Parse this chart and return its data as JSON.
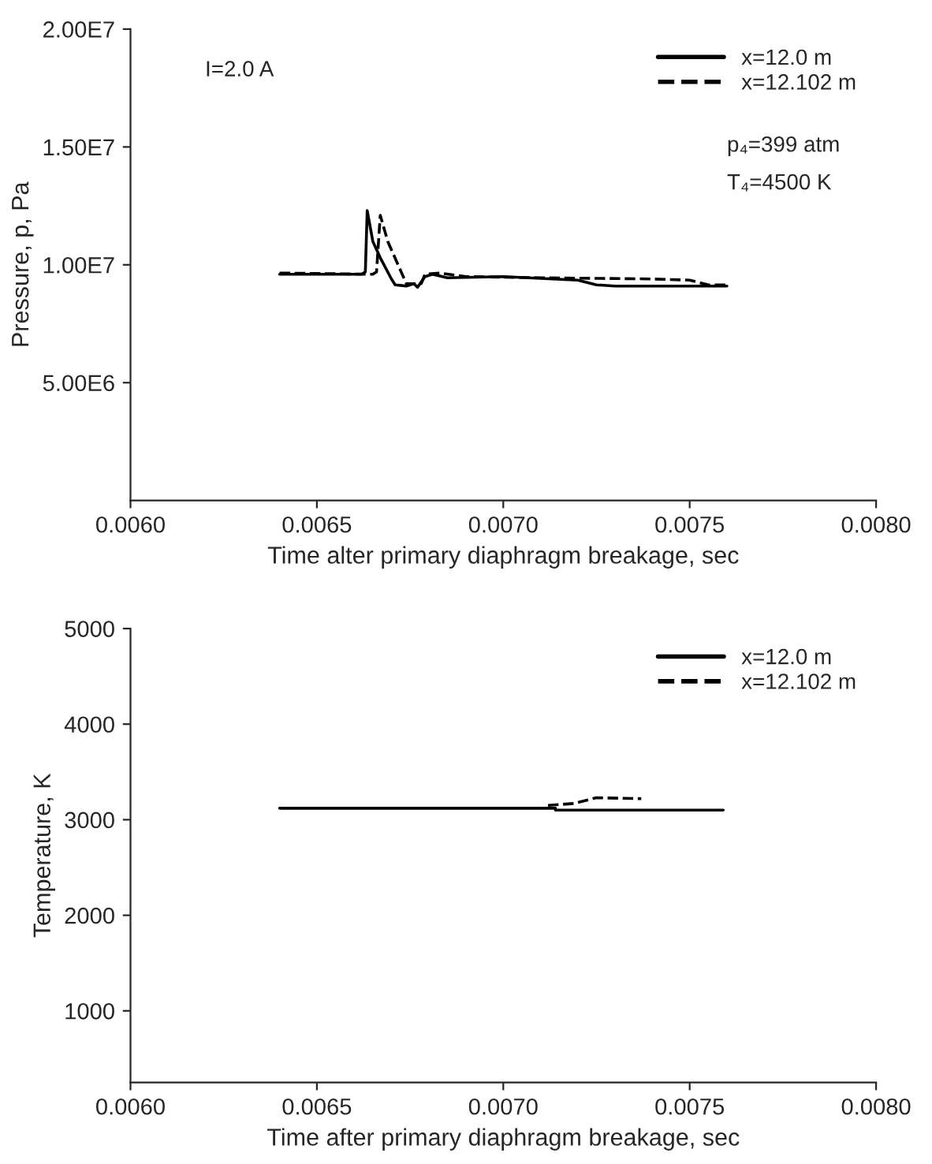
{
  "chart_data": [
    {
      "type": "line",
      "xlabel": "Time alter primary diaphragm breakage, sec",
      "ylabel": "Pressure, p, Pa",
      "annotations": [
        "I=2.0 A",
        "p₄=399 atm",
        "T₄=4500 K"
      ],
      "xlim": [
        0.006,
        0.008
      ],
      "xticks": [
        {
          "value": 0.006,
          "label": "0.0060"
        },
        {
          "value": 0.0065,
          "label": "0.0065"
        },
        {
          "value": 0.007,
          "label": "0.0070"
        },
        {
          "value": 0.0075,
          "label": "0.0075"
        },
        {
          "value": 0.008,
          "label": "0.0080"
        }
      ],
      "ylim": [
        0,
        20000000
      ],
      "yticks": [
        {
          "value": 5000000,
          "label": "5.00E6"
        },
        {
          "value": 10000000,
          "label": "1.00E7"
        },
        {
          "value": 15000000,
          "label": "1.50E7"
        },
        {
          "value": 20000000,
          "label": "2.00E7"
        }
      ],
      "legend": "top right",
      "grid": false,
      "series": [
        {
          "name": "x=12.0 m",
          "color": "#000000",
          "line_style": "solid",
          "x": [
            0.0064,
            0.00662,
            0.00663,
            0.006635,
            0.00665,
            0.00667,
            0.0067,
            0.00671,
            0.00674,
            0.00676,
            0.00677,
            0.00679,
            0.00681,
            0.00685,
            0.007,
            0.0072,
            0.00725,
            0.0073,
            0.0076
          ],
          "values": [
            9600000,
            9600000,
            9700000,
            12300000,
            11000000,
            10300000,
            9400000,
            9150000,
            9100000,
            9200000,
            9050000,
            9500000,
            9600000,
            9450000,
            9500000,
            9350000,
            9150000,
            9100000,
            9100000
          ]
        },
        {
          "name": "x=12.102 m",
          "color": "#000000",
          "line_style": "dashed",
          "x": [
            0.0064,
            0.00665,
            0.00666,
            0.00667,
            0.00669,
            0.00674,
            0.00678,
            0.00679,
            0.00683,
            0.0069,
            0.0071,
            0.0074,
            0.0075,
            0.00755,
            0.0076
          ],
          "values": [
            9650000,
            9600000,
            9700000,
            12100000,
            11000000,
            9200000,
            9200000,
            9600000,
            9650000,
            9500000,
            9450000,
            9400000,
            9350000,
            9150000,
            9150000
          ]
        }
      ]
    },
    {
      "type": "line",
      "xlabel": "Time after primary diaphragm breakage, sec",
      "ylabel": "Temperature, K",
      "xlim": [
        0.006,
        0.008
      ],
      "xticks": [
        {
          "value": 0.006,
          "label": "0.0060"
        },
        {
          "value": 0.0065,
          "label": "0.0065"
        },
        {
          "value": 0.007,
          "label": "0.0070"
        },
        {
          "value": 0.0075,
          "label": "0.0075"
        },
        {
          "value": 0.008,
          "label": "0.0080"
        }
      ],
      "ylim": [
        250,
        5000
      ],
      "yticks": [
        1000,
        2000,
        3000,
        4000,
        5000
      ],
      "legend": "top right",
      "grid": false,
      "series": [
        {
          "name": "x=12.0 m",
          "color": "#000000",
          "line_style": "solid",
          "x": [
            0.0064,
            0.00714,
            0.00714,
            0.00759
          ],
          "values": [
            3120,
            3120,
            3100,
            3100
          ]
        },
        {
          "name": "x=12.102 m",
          "color": "#000000",
          "line_style": "dashed",
          "x": [
            0.00712,
            0.00719,
            0.00725,
            0.00737
          ],
          "values": [
            3150,
            3170,
            3230,
            3220
          ]
        }
      ]
    }
  ]
}
